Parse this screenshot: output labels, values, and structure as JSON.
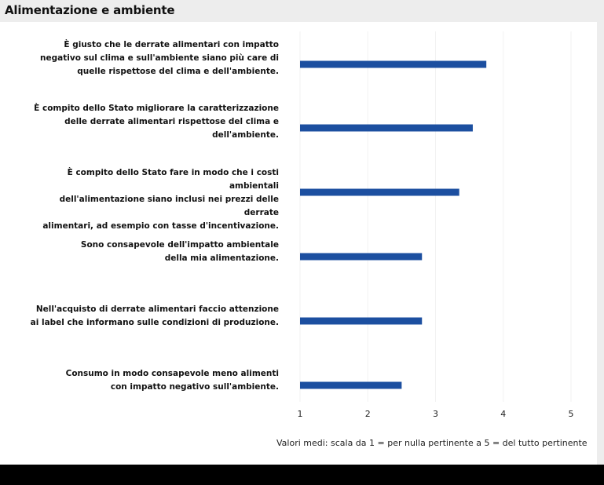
{
  "title": "Alimentazione e ambiente",
  "chart_data": {
    "type": "bar",
    "orientation": "horizontal",
    "categories": [
      "È giusto che le derrate alimentari con impatto negativo sul clima e sull'ambiente siano più care di quelle rispettose del clima e dell'ambiente.",
      "È compito dello Stato migliorare la caratterizzazione delle derrate alimentari rispettose del clima e dell'ambiente.",
      "È compito dello Stato fare in modo che i costi ambientali dell'alimentazione siano inclusi nei prezzi delle derrate alimentari, ad esempio con tasse d'incentivazione.",
      "Sono consapevole dell'impatto ambientale della mia alimentazione.",
      "Nell'acquisto di derrate alimentari faccio attenzione ai label che informano sulle condizioni di produzione.",
      "Consumo in modo consapevole meno alimenti con impatto negativo sull'ambiente."
    ],
    "category_lines": [
      [
        "È giusto che le derrate alimentari con impatto",
        "negativo sul clima e sull'ambiente siano più care di",
        "quelle rispettose del clima e dell'ambiente."
      ],
      [
        "È compito dello Stato migliorare la caratterizzazione",
        "delle derrate alimentari rispettose del clima e",
        "dell'ambiente."
      ],
      [
        "È compito dello Stato fare in modo che i costi ambientali",
        "dell'alimentazione siano inclusi nei prezzi delle derrate",
        "alimentari, ad esempio con tasse d'incentivazione."
      ],
      [
        "Sono consapevole dell'impatto ambientale",
        "della mia alimentazione."
      ],
      [
        "Nell'acquisto di derrate alimentari faccio attenzione",
        "ai label che informano sulle condizioni di produzione."
      ],
      [
        "Consumo in modo consapevole meno alimenti",
        "con impatto negativo sull'ambiente."
      ]
    ],
    "values": [
      3.75,
      3.55,
      3.35,
      2.8,
      2.8,
      2.5
    ],
    "xlim": [
      1,
      5
    ],
    "xticks": [
      "1",
      "2",
      "3",
      "4",
      "5"
    ],
    "xlabel": "Valori medi: scala da 1 = per nulla pertinente a 5 = del tutto pertinente",
    "bar_color": "#1c4fa0",
    "grid": true
  }
}
